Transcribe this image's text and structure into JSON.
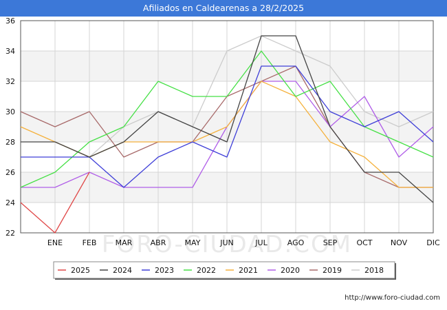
{
  "header": {
    "title": "Afiliados en Caldearenas a 28/2/2025"
  },
  "footer": {
    "url": "http://www.foro-ciudad.com"
  },
  "watermark": "FORO-CIUDAD.COM",
  "chart_data": {
    "type": "line",
    "title": "Afiliados en Caldearenas a 28/2/2025",
    "xlabel": "",
    "ylabel": "",
    "categories": [
      "",
      "ENE",
      "FEB",
      "MAR",
      "ABR",
      "MAY",
      "JUN",
      "JUL",
      "AGO",
      "SEP",
      "OCT",
      "NOV",
      "DIC"
    ],
    "ylim": [
      22,
      36
    ],
    "yticks": [
      22,
      24,
      26,
      28,
      30,
      32,
      34,
      36
    ],
    "grid": true,
    "legend_position": "bottom",
    "series": [
      {
        "name": "2018",
        "color": "#cccccc",
        "values": [
          null,
          null,
          27,
          29,
          30,
          29,
          34,
          35,
          34,
          33,
          30,
          29,
          30
        ]
      },
      {
        "name": "2019",
        "color": "#a86a6a",
        "values": [
          30,
          29,
          30,
          27,
          28,
          28,
          31,
          32,
          33,
          29,
          26,
          25,
          25
        ]
      },
      {
        "name": "2020",
        "color": "#b05ee8",
        "values": [
          25,
          25,
          26,
          25,
          25,
          25,
          29,
          32,
          32,
          29,
          31,
          27,
          29
        ]
      },
      {
        "name": "2021",
        "color": "#f5b13c",
        "values": [
          29,
          28,
          27,
          28,
          28,
          28,
          29,
          32,
          31,
          28,
          27,
          25,
          25
        ]
      },
      {
        "name": "2022",
        "color": "#46e046",
        "values": [
          25,
          26,
          28,
          29,
          32,
          31,
          31,
          34,
          31,
          32,
          29,
          28,
          27
        ]
      },
      {
        "name": "2023",
        "color": "#3f3fd8",
        "values": [
          27,
          27,
          27,
          25,
          27,
          28,
          27,
          33,
          33,
          30,
          29,
          30,
          28
        ]
      },
      {
        "name": "2024",
        "color": "#444444",
        "values": [
          28,
          28,
          27,
          28,
          30,
          29,
          28,
          35,
          35,
          29,
          26,
          26,
          24
        ]
      },
      {
        "name": "2025",
        "color": "#e04848",
        "values": [
          24,
          22,
          26,
          null,
          null,
          null,
          null,
          null,
          null,
          null,
          null,
          null,
          null
        ]
      }
    ],
    "legend_order": [
      "2025",
      "2024",
      "2023",
      "2022",
      "2021",
      "2020",
      "2019",
      "2018"
    ]
  }
}
